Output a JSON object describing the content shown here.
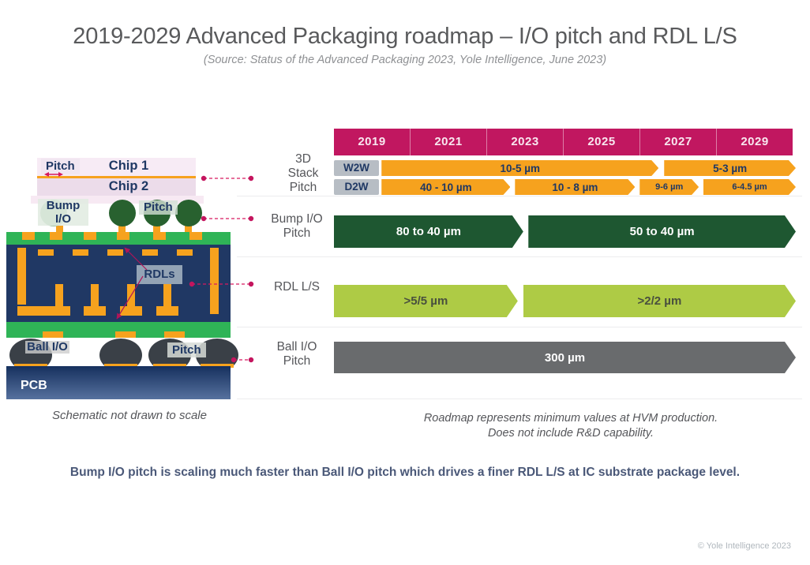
{
  "title": "2019-2029 Advanced Packaging roadmap – I/O pitch and RDL L/S",
  "subtitle": "(Source: Status of the Advanced Packaging 2023, Yole Intelligence, June 2023)",
  "colors": {
    "header_magenta": "#c11760",
    "arrow_orange": "#f6a21e",
    "arrow_dark_green": "#1e5731",
    "arrow_light_green": "#aecb45",
    "arrow_gray": "#696b6d",
    "navy": "#1f3864",
    "substrate_green": "#2fb457",
    "connector_crimson": "#d6195f"
  },
  "chart_data": {
    "type": "roadmap-timeline",
    "x_axis": {
      "years": [
        "2019",
        "2021",
        "2023",
        "2025",
        "2027",
        "2029"
      ]
    },
    "rows": [
      {
        "label": "3D Stack Pitch",
        "sublanes": [
          {
            "tag": "W2W",
            "color": "#f6a21e",
            "text_color": "#1f3864",
            "segments": [
              {
                "text": "10-5 µm",
                "year_span": "2019-2026",
                "start": 0.103,
                "end": 0.703
              },
              {
                "text": "5-3 µm",
                "year_span": "2026-2029+",
                "start": 0.715,
                "end": 1.0
              }
            ]
          },
          {
            "tag": "D2W",
            "color": "#f6a21e",
            "text_color": "#1f3864",
            "segments": [
              {
                "text": "40 - 10 µm",
                "year_span": "2019-2022",
                "start": 0.103,
                "end": 0.382
              },
              {
                "text": "10 - 8 µm",
                "year_span": "2022-2026",
                "start": 0.392,
                "end": 0.652
              },
              {
                "text": "9-6 µm",
                "year_span": "2026-2027",
                "start": 0.662,
                "end": 0.79
              },
              {
                "text": "6-4.5 µm",
                "year_span": "2027-2029+",
                "start": 0.8,
                "end": 1.0
              }
            ]
          }
        ]
      },
      {
        "label": "Bump I/O Pitch",
        "color": "#1e5731",
        "text_color": "#ffffff",
        "segments": [
          {
            "text": "80 to 40 µm",
            "year_span": "2019-2022",
            "start": 0.0,
            "end": 0.41
          },
          {
            "text": "50 to 40 µm",
            "year_span": "2023-2029+",
            "start": 0.421,
            "end": 1.0
          }
        ]
      },
      {
        "label": "RDL L/S",
        "color": "#aecb45",
        "text_color": "#49503e",
        "segments": [
          {
            "text": ">5/5 µm",
            "year_span": "2019-2022",
            "start": 0.0,
            "end": 0.398
          },
          {
            "text": ">2/2 µm",
            "year_span": "2023-2029+",
            "start": 0.41,
            "end": 1.0
          }
        ]
      },
      {
        "label": "Ball I/O Pitch",
        "color": "#696b6d",
        "text_color": "#ffffff",
        "segments": [
          {
            "text": "300 µm",
            "year_span": "2019-2029+",
            "start": 0.0,
            "end": 1.0
          }
        ]
      }
    ]
  },
  "schematic": {
    "pitch_top": "Pitch",
    "chip1": "Chip 1",
    "chip2": "Chip 2",
    "bump_io": "Bump I/O",
    "pitch_bump": "Pitch",
    "rdls": "RDLs",
    "ball_io": "Ball I/O",
    "pitch_ball": "Pitch",
    "pcb": "PCB",
    "note": "Schematic not drawn to scale"
  },
  "footnote": {
    "line1": "Roadmap represents minimum values at HVM production.",
    "line2": "Does not include R&D capability."
  },
  "bottom_note": "Bump I/O pitch is scaling much faster than Ball I/O pitch which drives a finer RDL L/S at IC substrate package level.",
  "copyright": "© Yole Intelligence 2023"
}
